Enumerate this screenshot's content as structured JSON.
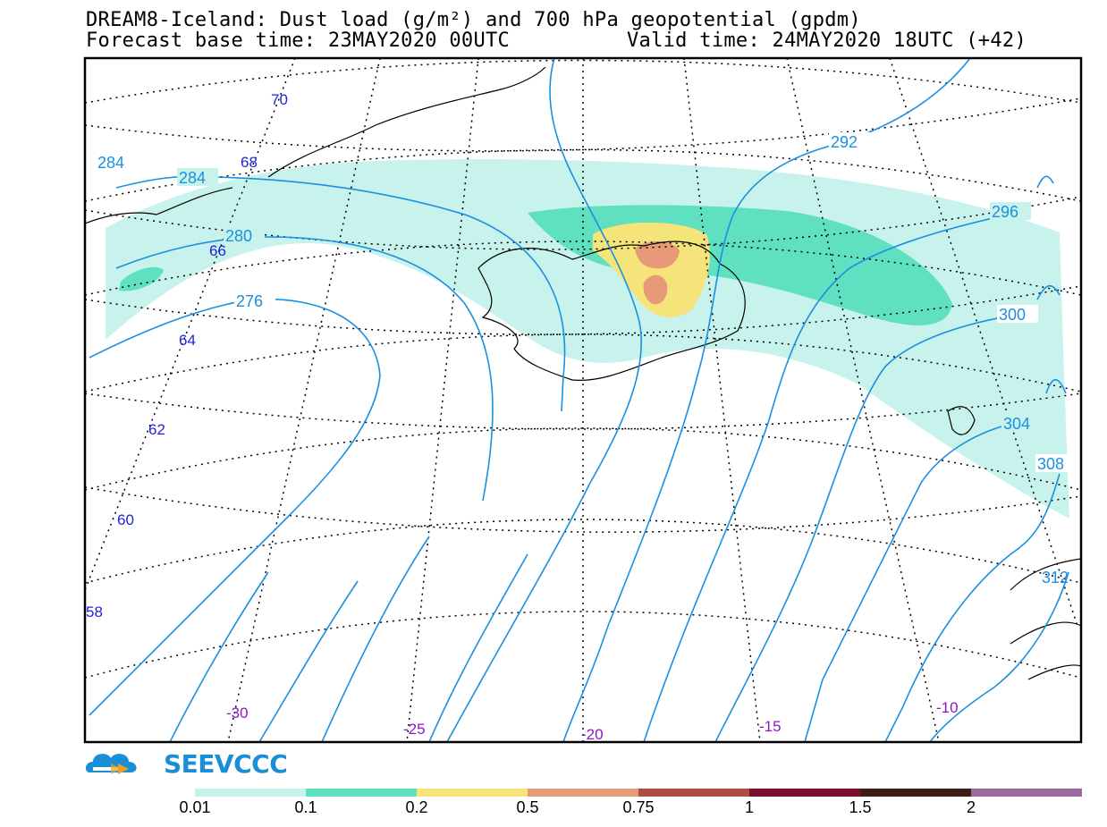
{
  "title": {
    "line1": "DREAM8-Iceland: Dust load (g/m²) and 700 hPa geopotential (gpdm)",
    "base_time": "Forecast base time: 23MAY2020 00UTC",
    "valid_time": "Valid time: 24MAY2020 18UTC (+42)"
  },
  "latitude_labels": [
    "70",
    "68",
    "66",
    "64",
    "62",
    "60",
    "58"
  ],
  "longitude_labels": [
    "-30",
    "-25",
    "-20",
    "-15",
    "-10"
  ],
  "contour_labels": [
    "284",
    "284",
    "280",
    "276",
    "292",
    "296",
    "300",
    "304",
    "308",
    "312"
  ],
  "logo": {
    "text": "SEEVCCC",
    "icon": "cloud-arrow-icon"
  },
  "legend": {
    "colors": [
      "#c8f2ec",
      "#5fe0c0",
      "#f5e47a",
      "#e89a78",
      "#ad4e45",
      "#7b0e2a",
      "#3d1e14",
      "#9b6aa0"
    ],
    "labels": [
      "0.01",
      "0.1",
      "0.2",
      "0.5",
      "0.75",
      "1",
      "1.5",
      "2"
    ]
  },
  "colors": {
    "contour": "#1a90e0",
    "lat_label": "#2222dd",
    "lon_label": "#8a17c7",
    "frame": "#000000"
  }
}
